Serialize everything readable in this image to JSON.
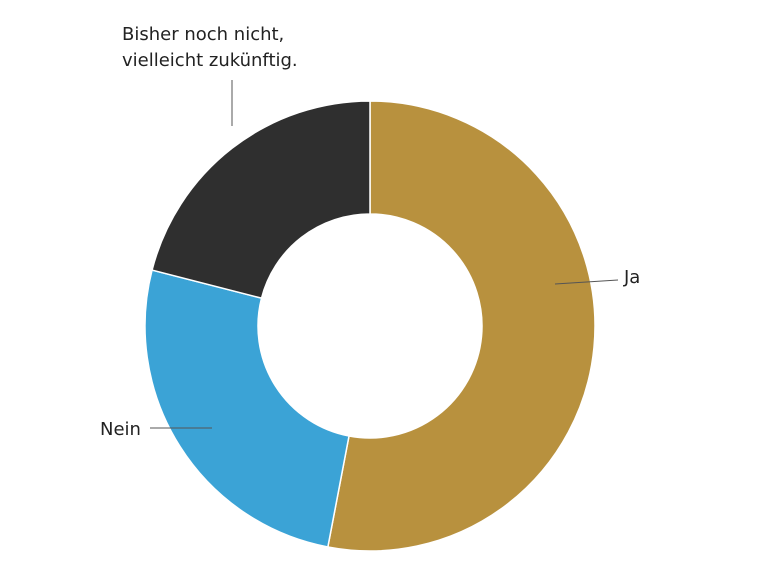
{
  "chart_data": {
    "type": "donut",
    "categories": [
      "Ja",
      "Nein",
      "Bisher noch nicht, vielleicht zukünftig."
    ],
    "values": [
      53,
      26,
      21
    ],
    "colors": [
      "#b8913e",
      "#3ba3d6",
      "#2f2f2f"
    ]
  }
}
